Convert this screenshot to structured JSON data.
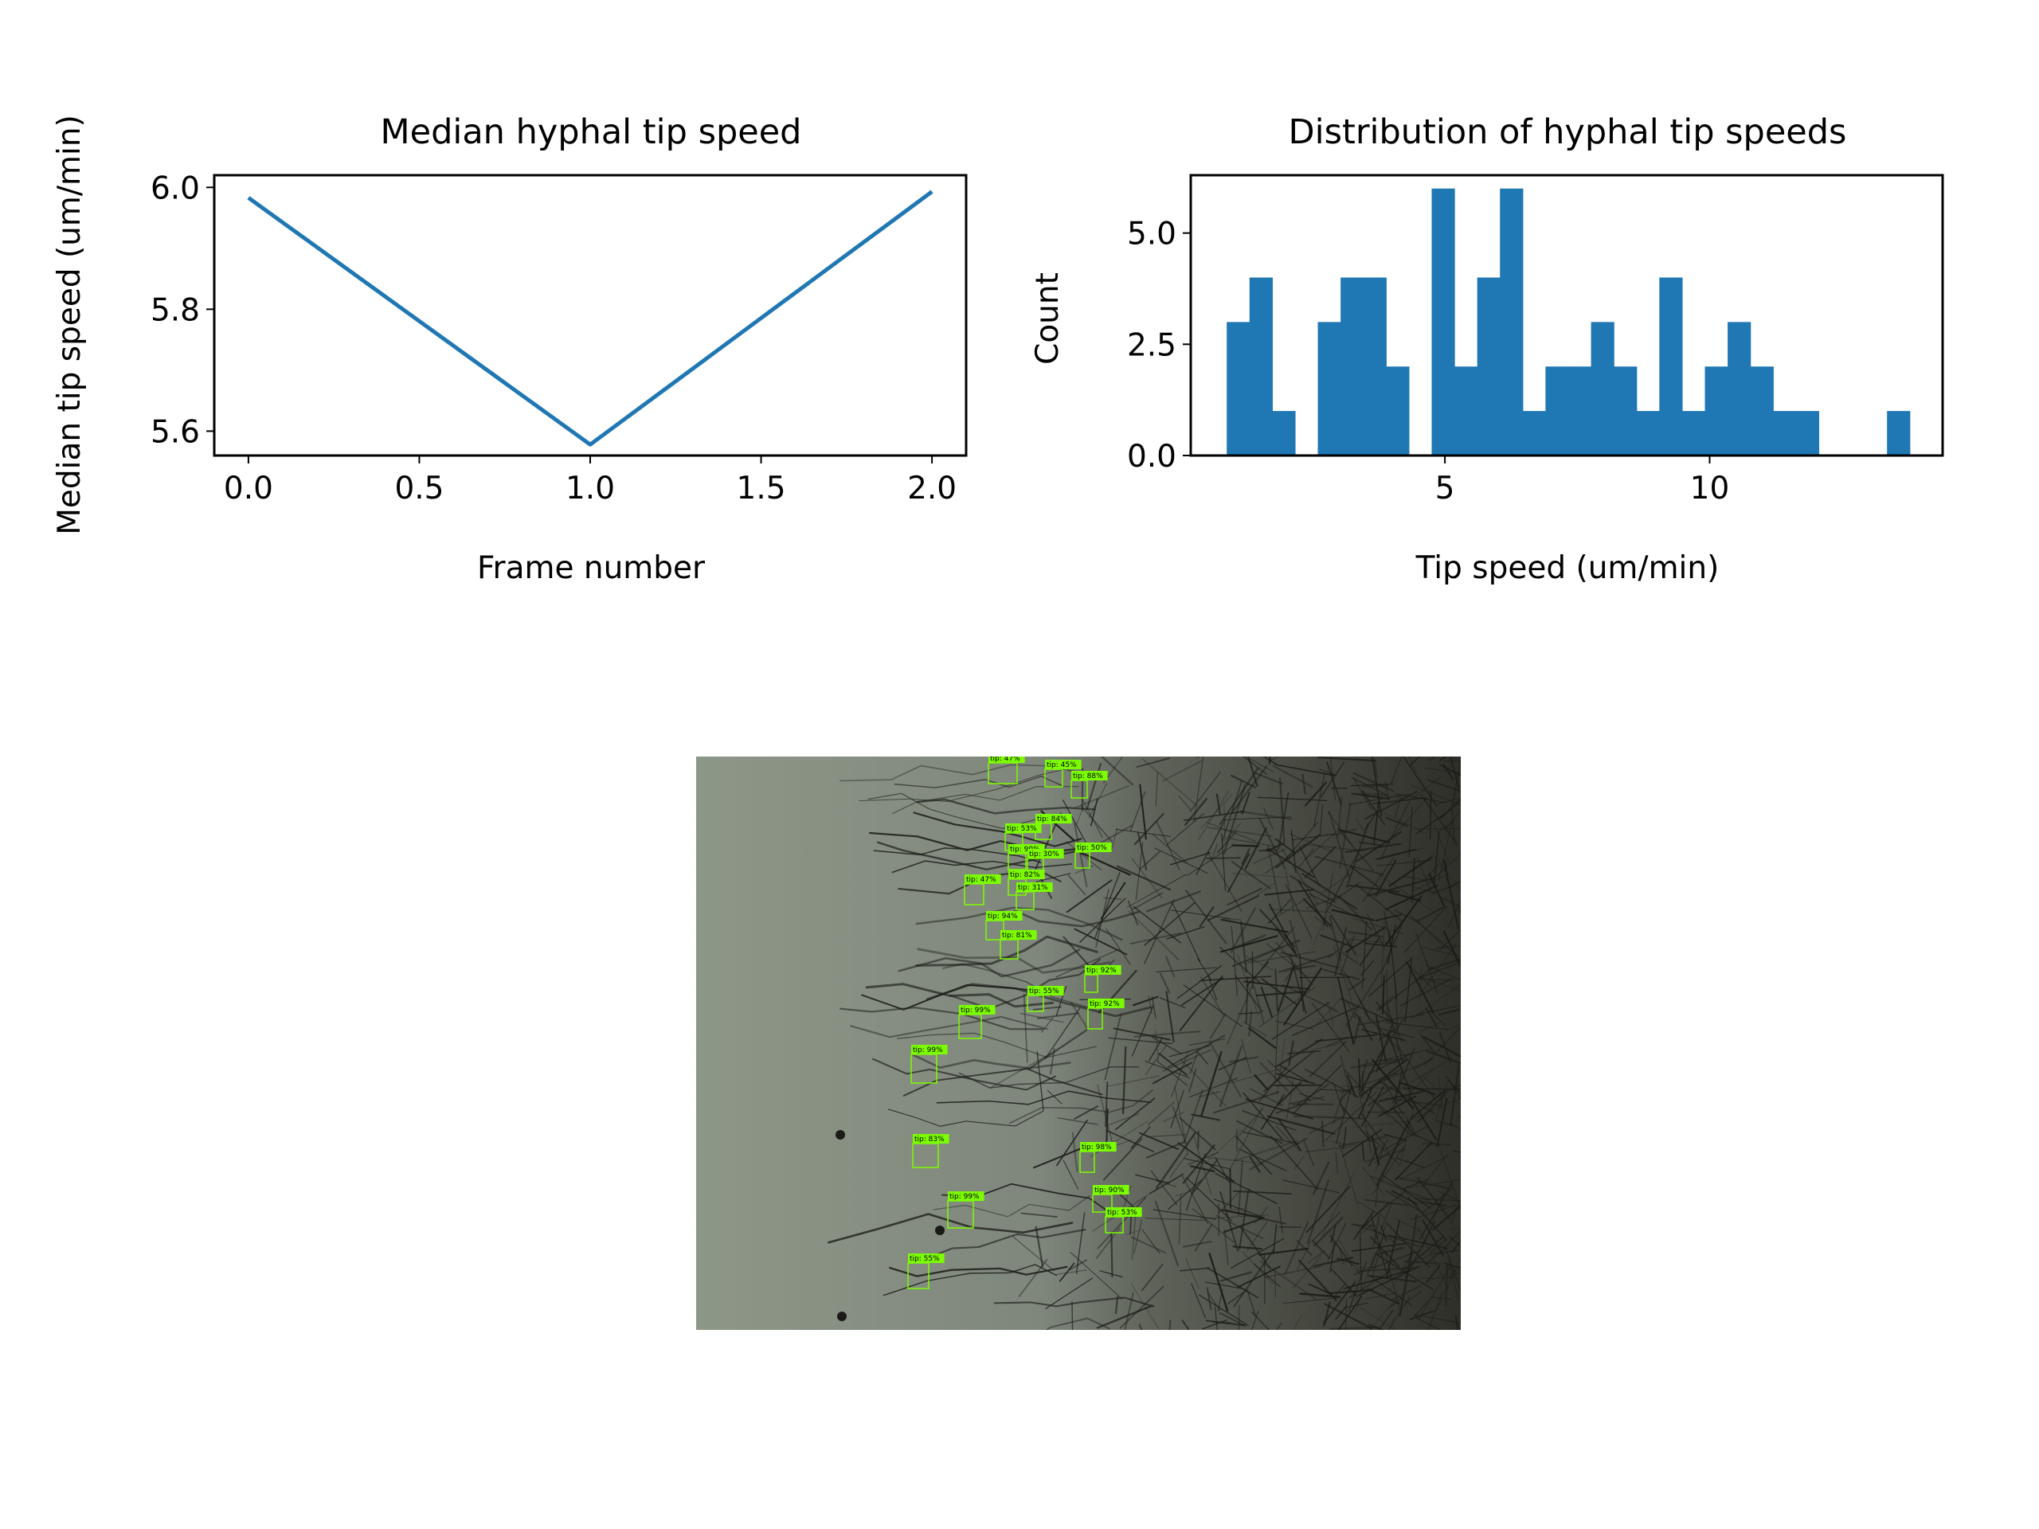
{
  "colors": {
    "series": "#1f77b4",
    "detection_box": "#7cfc00",
    "axis": "#000000"
  },
  "chart_data": [
    {
      "type": "line",
      "title": "Median hyphal tip speed",
      "xlabel": "Frame number",
      "ylabel": "Median tip speed (um/min)",
      "x": [
        0,
        1,
        2
      ],
      "series": [
        {
          "values": [
            5.983,
            5.578,
            5.993
          ]
        }
      ],
      "xlim": [
        -0.1,
        2.1
      ],
      "ylim": [
        5.56,
        6.02
      ],
      "xticks": [
        0.0,
        0.5,
        1.0,
        1.5,
        2.0
      ],
      "xtick_labels": [
        "0.0",
        "0.5",
        "1.0",
        "1.5",
        "2.0"
      ],
      "yticks": [
        5.6,
        5.8,
        6.0
      ],
      "ytick_labels": [
        "5.6",
        "5.8",
        "6.0"
      ],
      "grid": false
    },
    {
      "type": "bar",
      "subtype": "histogram",
      "title": "Distribution of hyphal tip speeds",
      "xlabel": "Tip speed (um/min)",
      "ylabel": "Count",
      "bin_start": 0.88,
      "bin_width": 0.43,
      "values": [
        3,
        4,
        1,
        0,
        3,
        4,
        4,
        2,
        0,
        6,
        2,
        4,
        6,
        1,
        2,
        2,
        3,
        2,
        1,
        4,
        1,
        2,
        3,
        2,
        1,
        1,
        0,
        0,
        0,
        1
      ],
      "xlim": [
        0.2,
        14.4
      ],
      "ylim": [
        0,
        6.3
      ],
      "xticks": [
        5,
        10
      ],
      "xtick_labels": [
        "5",
        "10"
      ],
      "yticks": [
        0,
        2.5,
        5.0
      ],
      "ytick_labels": [
        "0.0",
        "2.5",
        "5.0"
      ],
      "grid": false
    }
  ],
  "image_panel": {
    "detections": [
      {
        "label": "tip: 47%"
      },
      {
        "label": "tip: 45%"
      },
      {
        "label": "tip: 88%"
      },
      {
        "label": "tip: 84%"
      },
      {
        "label": "tip: 53%"
      },
      {
        "label": "tip: 90%"
      },
      {
        "label": "tip: 30%"
      },
      {
        "label": "tip: 50%"
      },
      {
        "label": "tip: 82%"
      },
      {
        "label": "tip: 47%"
      },
      {
        "label": "tip: 31%"
      },
      {
        "label": "tip: 94%"
      },
      {
        "label": "tip: 81%"
      },
      {
        "label": "tip: 92%"
      },
      {
        "label": "tip: 55%"
      },
      {
        "label": "tip: 99%"
      },
      {
        "label": "tip: 92%"
      },
      {
        "label": "tip: 99%"
      },
      {
        "label": "tip: 83%"
      },
      {
        "label": "tip: 98%"
      },
      {
        "label": "tip: 90%"
      },
      {
        "label": "tip: 99%"
      },
      {
        "label": "tip: 53%"
      },
      {
        "label": "tip: 55%"
      }
    ]
  }
}
